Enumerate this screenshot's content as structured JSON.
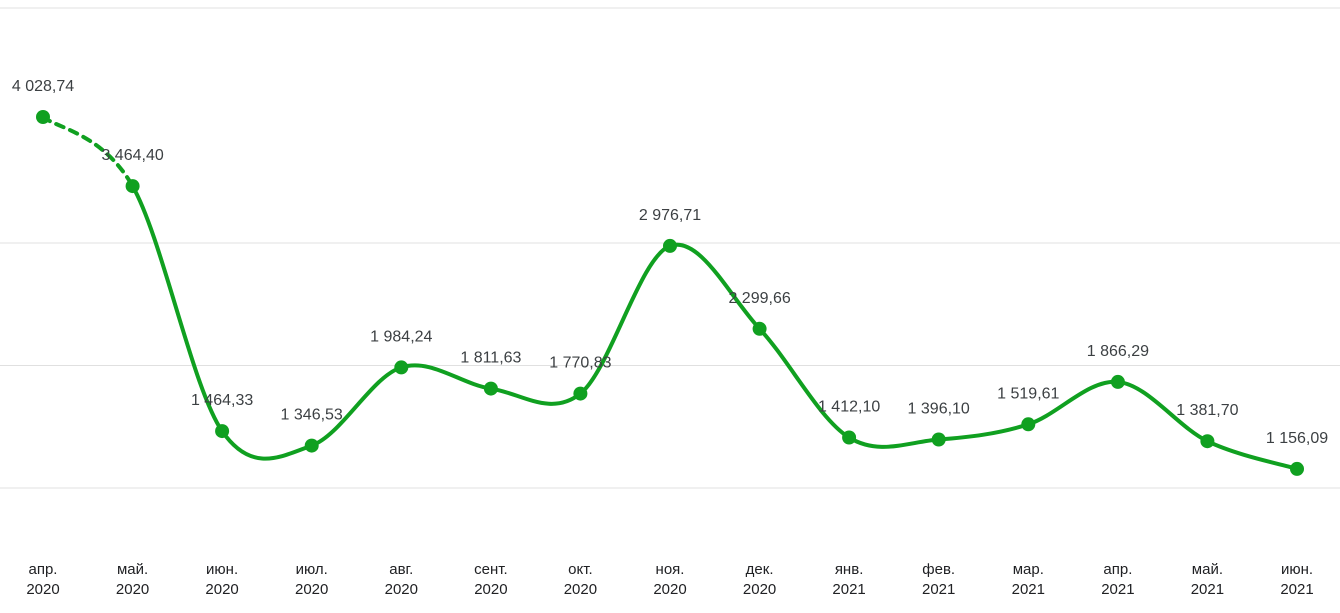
{
  "chart_data": {
    "type": "line",
    "title": "",
    "xlabel": "",
    "ylabel": "",
    "smooth": true,
    "first_segment_dashed": true,
    "legend": "none",
    "grid": "horizontal",
    "categories": [
      {
        "month": "апр.",
        "year": "2020"
      },
      {
        "month": "май.",
        "year": "2020"
      },
      {
        "month": "июн.",
        "year": "2020"
      },
      {
        "month": "июл.",
        "year": "2020"
      },
      {
        "month": "авг.",
        "year": "2020"
      },
      {
        "month": "сент.",
        "year": "2020"
      },
      {
        "month": "окт.",
        "year": "2020"
      },
      {
        "month": "ноя.",
        "year": "2020"
      },
      {
        "month": "дек.",
        "year": "2020"
      },
      {
        "month": "янв.",
        "year": "2021"
      },
      {
        "month": "фев.",
        "year": "2021"
      },
      {
        "month": "мар.",
        "year": "2021"
      },
      {
        "month": "апр.",
        "year": "2021"
      },
      {
        "month": "май.",
        "year": "2021"
      },
      {
        "month": "июн.",
        "year": "2021"
      }
    ],
    "values": [
      4028.74,
      3464.4,
      1464.33,
      1346.53,
      1984.24,
      1811.63,
      1770.83,
      2976.71,
      2299.66,
      1412.1,
      1396.1,
      1519.61,
      1866.29,
      1381.7,
      1156.09
    ],
    "value_labels": [
      "4 028,74",
      "3 464,40",
      "1 464,33",
      "1 346,53",
      "1 984,24",
      "1 811,63",
      "1 770,83",
      "2 976,71",
      "2 299,66",
      "1 412,10",
      "1 396,10",
      "1 519,61",
      "1 866,29",
      "1 381,70",
      "1 156,09"
    ],
    "y_axis": {
      "gridline_values": [
        1000,
        2000,
        3000
      ],
      "range": [
        1000,
        4920
      ]
    },
    "colors": {
      "line": "#10a020",
      "point": "#10a020",
      "gridline": "#e0e0e0",
      "data_label": "#3c4043",
      "axis_label": "#202124"
    }
  }
}
